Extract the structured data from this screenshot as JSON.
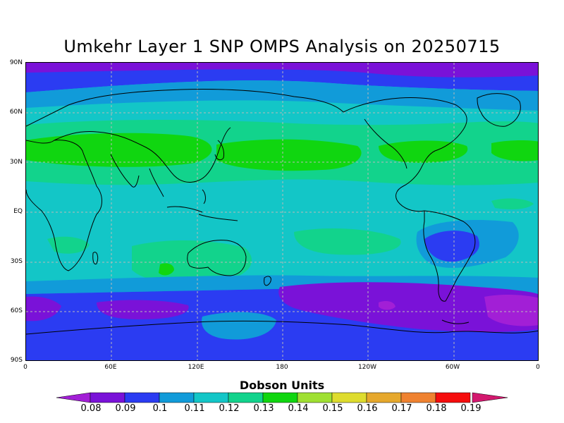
{
  "title": "Umkehr Layer 1 SNP OMPS Analysis on 20250715",
  "lat_ticks": [
    "90N",
    "60N",
    "30N",
    "EQ",
    "30S",
    "60S",
    "90S"
  ],
  "lon_ticks": [
    "0",
    "60E",
    "120E",
    "180",
    "120W",
    "60W",
    "0"
  ],
  "legend": {
    "title": "Dobson Units",
    "levels": [
      "0.08",
      "0.09",
      "0.1",
      "0.11",
      "0.12",
      "0.13",
      "0.14",
      "0.15",
      "0.16",
      "0.17",
      "0.18",
      "0.19"
    ],
    "colors": [
      "#a21fd6",
      "#7a12d8",
      "#2b3cf2",
      "#119bd9",
      "#13c6c7",
      "#12d38c",
      "#10d610",
      "#9fe032",
      "#dedc2e",
      "#e6a82c",
      "#ef8230",
      "#f50d0d",
      "#d3186e"
    ]
  },
  "chart_data": {
    "type": "heatmap",
    "title": "Umkehr Layer 1 SNP OMPS Analysis on 20250715",
    "xlabel": "",
    "ylabel": "",
    "colorbar_label": "Dobson Units",
    "x_range": [
      "0",
      "0"
    ],
    "y_range": [
      "90S",
      "90N"
    ],
    "zonal_bands": [
      {
        "lat_from": "90N",
        "lat_to": "75N",
        "value": 0.09
      },
      {
        "lat_from": "75N",
        "lat_to": "65N",
        "value": 0.1
      },
      {
        "lat_from": "65N",
        "lat_to": "50N",
        "value": 0.11
      },
      {
        "lat_from": "50N",
        "lat_to": "20N",
        "value": 0.13
      },
      {
        "lat_from": "20N",
        "lat_to": "25S",
        "value": 0.12
      },
      {
        "lat_from": "25S",
        "lat_to": "45S",
        "value": 0.12
      },
      {
        "lat_from": "45S",
        "lat_to": "55S",
        "value": 0.1
      },
      {
        "lat_from": "55S",
        "lat_to": "90S",
        "value": 0.1
      }
    ],
    "features": [
      {
        "region": "mid-latitude north (Asia, N. Pacific, N. Atlantic)",
        "value": 0.14
      },
      {
        "region": "central South America",
        "value": 0.09
      },
      {
        "region": "south of Africa 60S",
        "value": 0.09
      },
      {
        "region": "south Pacific 50-70S",
        "value": 0.09
      },
      {
        "region": "far south Atlantic",
        "value": 0.08
      }
    ]
  }
}
